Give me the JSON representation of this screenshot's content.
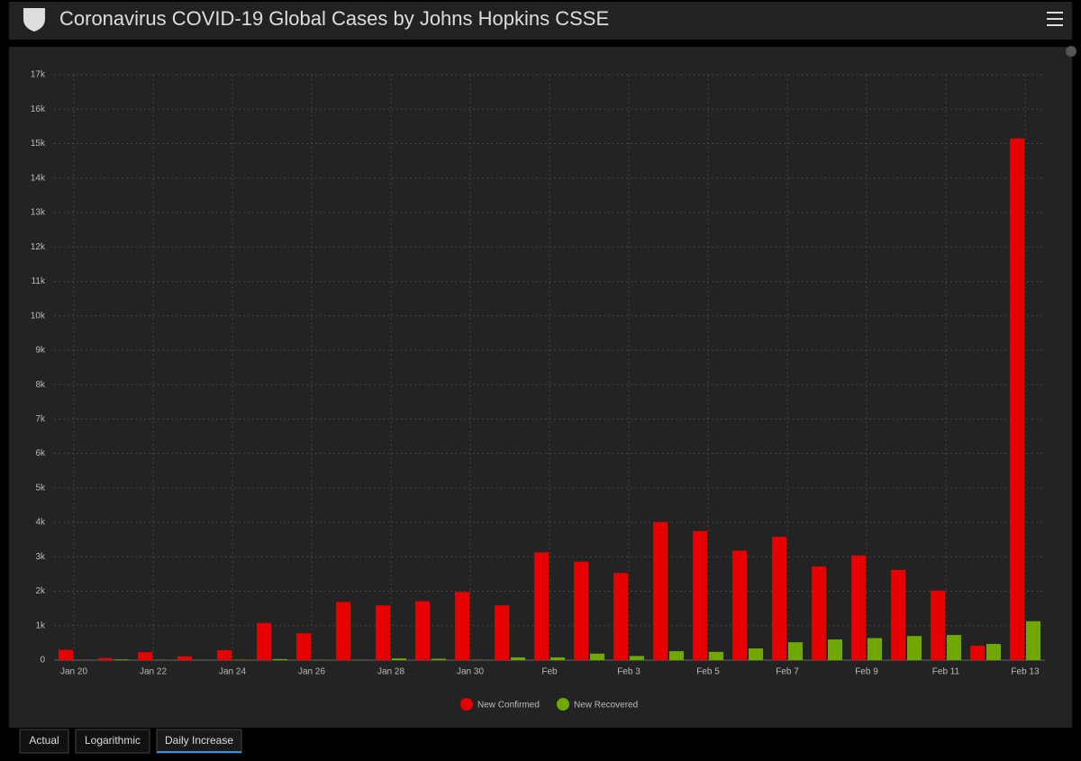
{
  "header": {
    "title": "Coronavirus COVID-19 Global Cases by Johns Hopkins CSSE"
  },
  "tabs": [
    "Actual",
    "Logarithmic",
    "Daily Increase"
  ],
  "chart_data": {
    "type": "bar",
    "categories": [
      "Jan 20",
      null,
      "Jan 22",
      null,
      "Jan 24",
      null,
      "Jan 26",
      null,
      "Jan 28",
      null,
      "Jan 30",
      null,
      "Feb",
      null,
      "Feb 3",
      null,
      "Feb 5",
      null,
      "Feb 7",
      null,
      "Feb 9",
      null,
      "Feb 11",
      null,
      "Feb 13"
    ],
    "series": [
      {
        "name": "New Confirmed",
        "color": "#e60000",
        "values": [
          300,
          60,
          230,
          110,
          290,
          1080,
          780,
          1690,
          1590,
          1710,
          1980,
          1590,
          3130,
          2860,
          2530,
          4010,
          3750,
          3180,
          3580,
          2720,
          3040,
          2620,
          2020,
          420,
          15150
        ]
      },
      {
        "name": "New Recovered",
        "color": "#70a800",
        "values": [
          0,
          20,
          10,
          5,
          10,
          30,
          5,
          5,
          50,
          40,
          10,
          80,
          80,
          190,
          120,
          260,
          240,
          340,
          520,
          600,
          640,
          700,
          730,
          470,
          1130
        ]
      }
    ],
    "ylim": [
      0,
      17000
    ],
    "yticks": [
      0,
      {
        "value": 1000,
        "label": "1k"
      },
      {
        "value": 2000,
        "label": "2k"
      },
      {
        "value": 3000,
        "label": "3k"
      },
      {
        "value": 4000,
        "label": "4k"
      },
      {
        "value": 5000,
        "label": "5k"
      },
      {
        "value": 6000,
        "label": "6k"
      },
      {
        "value": 7000,
        "label": "7k"
      },
      {
        "value": 8000,
        "label": "8k"
      },
      {
        "value": 9000,
        "label": "9k"
      },
      {
        "value": 10000,
        "label": "10k"
      },
      {
        "value": 11000,
        "label": "11k"
      },
      {
        "value": 12000,
        "label": "12k"
      },
      {
        "value": 13000,
        "label": "13k"
      },
      {
        "value": 14000,
        "label": "14k"
      },
      {
        "value": 15000,
        "label": "15k"
      },
      {
        "value": 16000,
        "label": "16k"
      },
      {
        "value": 17000,
        "label": "17k"
      }
    ],
    "grid": true
  }
}
